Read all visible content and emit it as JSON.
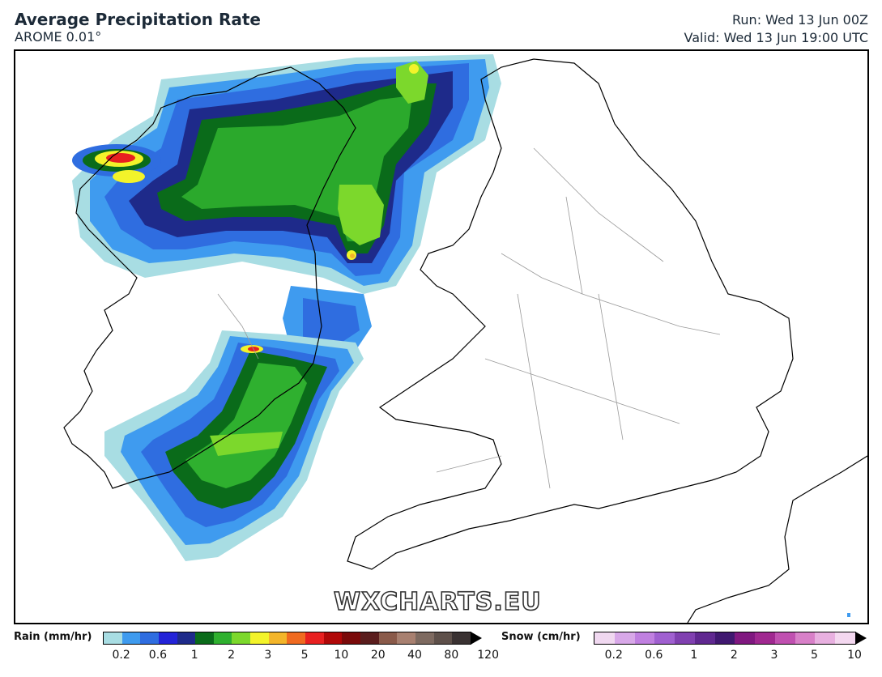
{
  "header": {
    "title": "Average Precipitation Rate",
    "model": "AROME 0.01°",
    "run": "Run: Wed 13 Jun 00Z",
    "valid": "Valid: Wed 13 Jun 19:00 UTC"
  },
  "watermark": "WXCHARTS.EU",
  "legend": {
    "rain": {
      "label": "Rain (mm/hr)",
      "colors": [
        "#a8dde3",
        "#3f9bef",
        "#2f6de0",
        "#2323d8",
        "#1e2a8a",
        "#0a6b1a",
        "#2fb02f",
        "#7cd82c",
        "#f3f32a",
        "#f3b52a",
        "#f06a20",
        "#e82020",
        "#b00808",
        "#7a0a0a",
        "#5a1d1d",
        "#8a5a4a",
        "#a88070",
        "#7e6a60",
        "#5e504a",
        "#3a3232"
      ],
      "ticks": [
        "0.2",
        "0.6",
        "1",
        "2",
        "3",
        "5",
        "10",
        "20",
        "40",
        "80",
        "120"
      ]
    },
    "snow": {
      "label": "Snow (cm/hr)",
      "colors": [
        "#f0d8f0",
        "#d8a8e8",
        "#c080e0",
        "#a060d0",
        "#8040b0",
        "#602890",
        "#401870",
        "#801880",
        "#a02890",
        "#c050b0",
        "#d880c8",
        "#e8b0e0",
        "#f4d8f0"
      ],
      "ticks": [
        "0.2",
        "0.6",
        "1",
        "2",
        "3",
        "5",
        "10"
      ]
    }
  }
}
